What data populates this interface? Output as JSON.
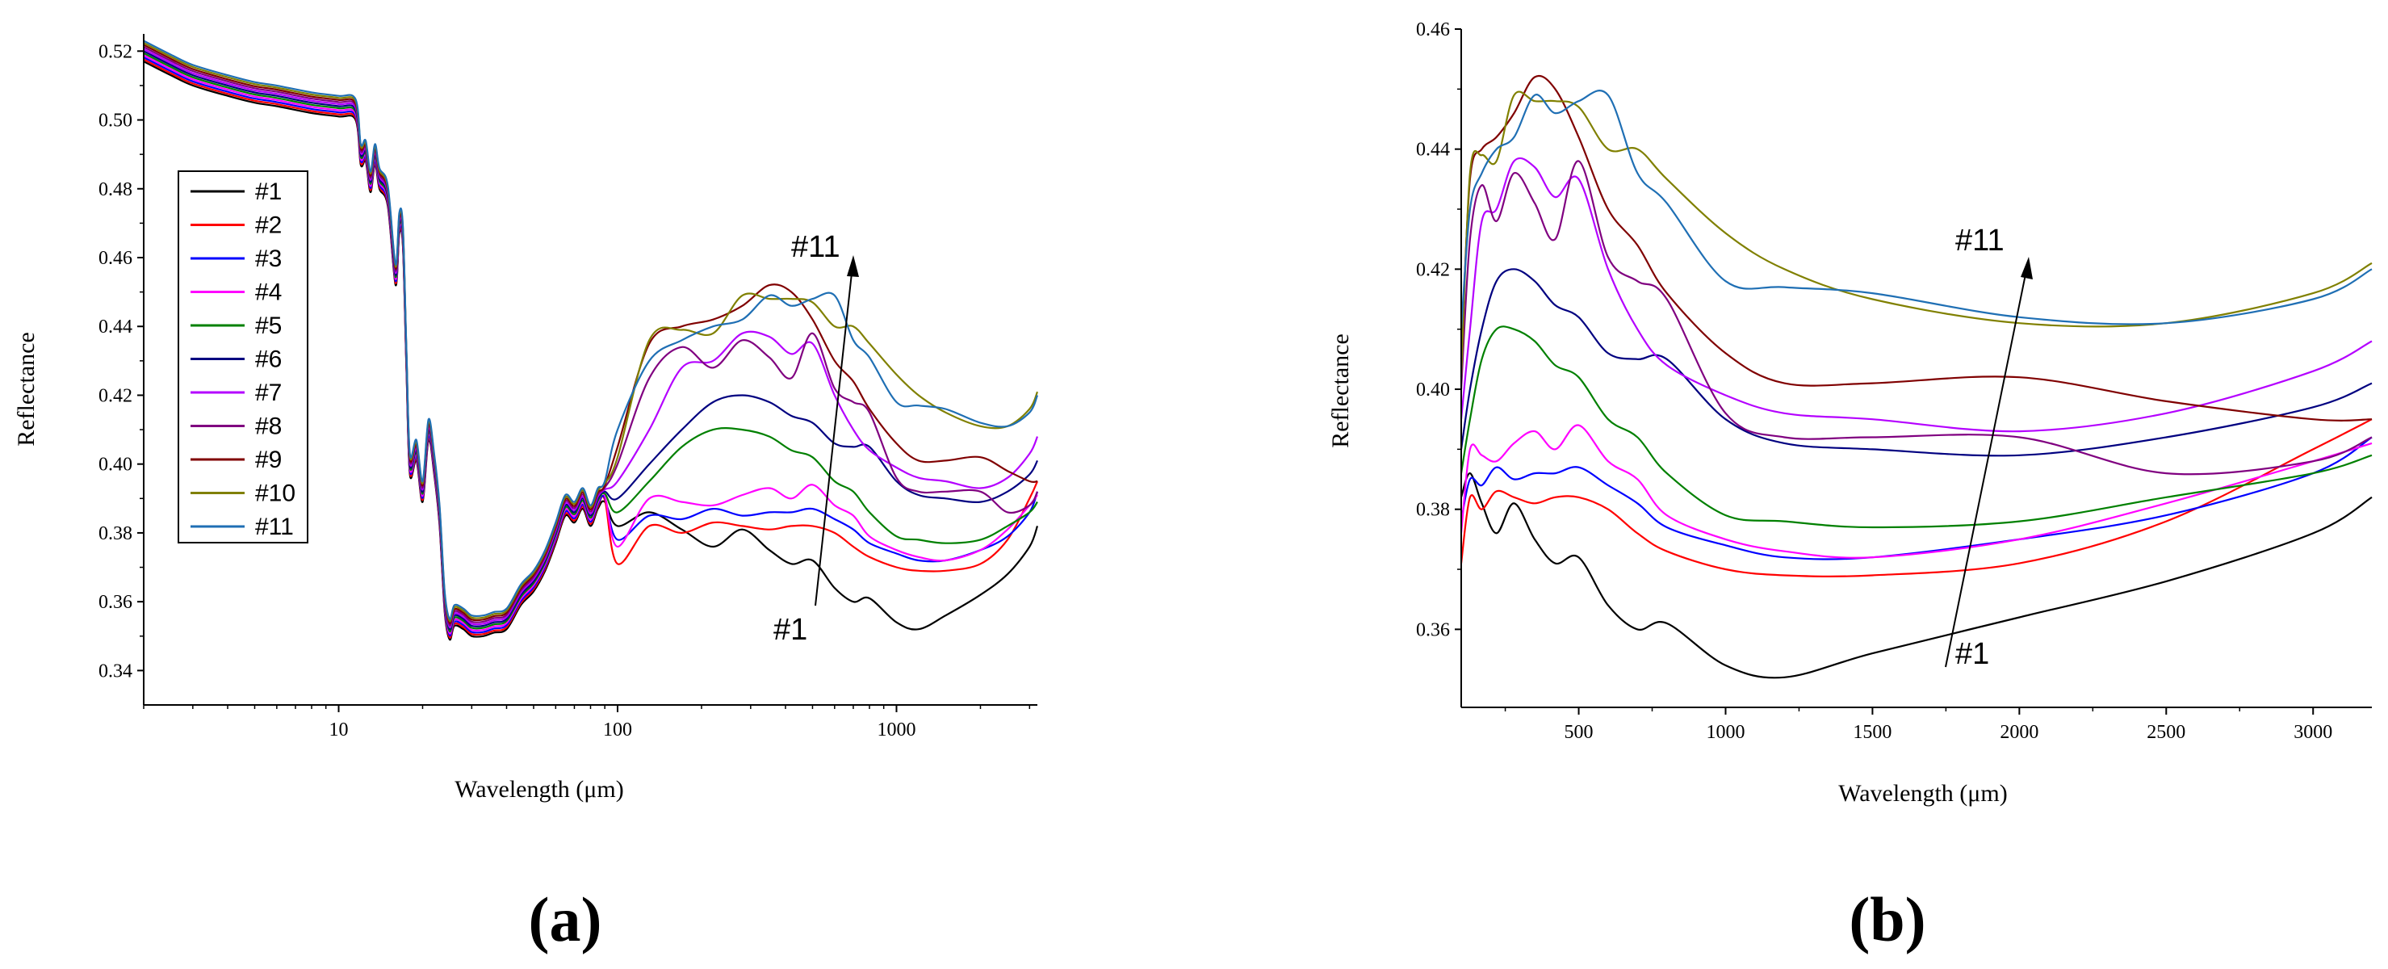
{
  "colors": {
    "#1": "#000000",
    "#2": "#ff0000",
    "#3": "#0000ff",
    "#4": "#ff00ff",
    "#5": "#008000",
    "#6": "#000080",
    "#7": "#b400ff",
    "#8": "#800080",
    "#9": "#800000",
    "#10": "#808000",
    "#11": "#1f6fb4"
  },
  "chart_data": [
    {
      "type": "line",
      "panel_label": "(a)",
      "xlabel": "Wavelength (μm)",
      "ylabel": "Reflectance",
      "xscale": "log",
      "xlim": [
        2,
        3200
      ],
      "ylim": [
        0.33,
        0.525
      ],
      "xticks": [
        10,
        100,
        1000
      ],
      "xtick_labels": [
        "10",
        "100",
        "1000"
      ],
      "yticks": [
        0.34,
        0.36,
        0.38,
        0.4,
        0.42,
        0.44,
        0.46,
        0.48,
        0.5,
        0.52
      ],
      "ytick_labels": [
        "0.34",
        "0.36",
        "0.38",
        "0.40",
        "0.42",
        "0.44",
        "0.46",
        "0.48",
        "0.50",
        "0.52"
      ],
      "legend": [
        "#1",
        "#2",
        "#3",
        "#4",
        "#5",
        "#6",
        "#7",
        "#8",
        "#9",
        "#10",
        "#11"
      ],
      "legend_position": "left",
      "annotations": [
        {
          "text": "#11",
          "x": 420,
          "y": 0.447
        },
        {
          "text": "#1",
          "x": 430,
          "y": 0.347
        }
      ],
      "common_segment": {
        "x": [
          2,
          2.5,
          3,
          4,
          5,
          6,
          8,
          10,
          11.5,
          12,
          12.5,
          13,
          13.5,
          14,
          15,
          16,
          16.5,
          17,
          17.5,
          18,
          19,
          20,
          21,
          22,
          23,
          24,
          25,
          26,
          28,
          30,
          33,
          36,
          40,
          45,
          50,
          55,
          60,
          65,
          70,
          75,
          80,
          85,
          90
        ],
        "y": [
          0.52,
          0.516,
          0.513,
          0.51,
          0.508,
          0.507,
          0.505,
          0.504,
          0.503,
          0.49,
          0.491,
          0.482,
          0.49,
          0.483,
          0.478,
          0.455,
          0.47,
          0.466,
          0.43,
          0.4,
          0.404,
          0.392,
          0.41,
          0.4,
          0.385,
          0.36,
          0.352,
          0.356,
          0.355,
          0.353,
          0.353,
          0.354,
          0.355,
          0.362,
          0.366,
          0.372,
          0.38,
          0.388,
          0.386,
          0.39,
          0.385,
          0.39,
          0.392
        ]
      },
      "series_x": [
        100,
        130,
        170,
        220,
        280,
        350,
        420,
        500,
        600,
        700,
        800,
        1000,
        1200,
        1500,
        2000,
        2500,
        3000,
        3200
      ],
      "series": [
        {
          "name": "#1",
          "values": [
            0.382,
            0.386,
            0.381,
            0.376,
            0.381,
            0.375,
            0.371,
            0.372,
            0.364,
            0.36,
            0.361,
            0.354,
            0.352,
            0.356,
            0.362,
            0.368,
            0.376,
            0.382
          ]
        },
        {
          "name": "#2",
          "values": [
            0.371,
            0.382,
            0.38,
            0.383,
            0.382,
            0.381,
            0.382,
            0.382,
            0.38,
            0.376,
            0.373,
            0.37,
            0.369,
            0.369,
            0.371,
            0.378,
            0.39,
            0.395
          ]
        },
        {
          "name": "#3",
          "values": [
            0.378,
            0.385,
            0.384,
            0.387,
            0.385,
            0.386,
            0.386,
            0.387,
            0.384,
            0.381,
            0.377,
            0.374,
            0.372,
            0.372,
            0.375,
            0.379,
            0.386,
            0.392
          ]
        },
        {
          "name": "#4",
          "values": [
            0.376,
            0.39,
            0.389,
            0.388,
            0.391,
            0.393,
            0.39,
            0.394,
            0.388,
            0.385,
            0.379,
            0.375,
            0.373,
            0.372,
            0.375,
            0.381,
            0.388,
            0.391
          ]
        },
        {
          "name": "#5",
          "values": [
            0.386,
            0.395,
            0.405,
            0.41,
            0.41,
            0.408,
            0.404,
            0.402,
            0.395,
            0.392,
            0.386,
            0.379,
            0.378,
            0.377,
            0.378,
            0.382,
            0.386,
            0.389
          ]
        },
        {
          "name": "#6",
          "values": [
            0.39,
            0.4,
            0.41,
            0.418,
            0.42,
            0.418,
            0.414,
            0.412,
            0.406,
            0.405,
            0.405,
            0.395,
            0.391,
            0.39,
            0.389,
            0.392,
            0.397,
            0.401
          ]
        },
        {
          "name": "#7",
          "values": [
            0.395,
            0.41,
            0.428,
            0.43,
            0.438,
            0.437,
            0.432,
            0.435,
            0.42,
            0.41,
            0.404,
            0.399,
            0.396,
            0.395,
            0.393,
            0.396,
            0.403,
            0.408
          ]
        },
        {
          "name": "#8",
          "values": [
            0.4,
            0.425,
            0.434,
            0.428,
            0.436,
            0.431,
            0.425,
            0.438,
            0.422,
            0.418,
            0.415,
            0.396,
            0.392,
            0.392,
            0.392,
            0.386,
            0.388,
            0.392
          ]
        },
        {
          "name": "#9",
          "values": [
            0.405,
            0.435,
            0.44,
            0.442,
            0.446,
            0.452,
            0.45,
            0.442,
            0.43,
            0.424,
            0.416,
            0.406,
            0.401,
            0.401,
            0.402,
            0.398,
            0.395,
            0.395
          ]
        },
        {
          "name": "#10",
          "values": [
            0.402,
            0.436,
            0.439,
            0.438,
            0.449,
            0.448,
            0.448,
            0.447,
            0.44,
            0.44,
            0.435,
            0.426,
            0.42,
            0.415,
            0.411,
            0.411,
            0.416,
            0.421
          ]
        },
        {
          "name": "#11",
          "values": [
            0.41,
            0.43,
            0.436,
            0.44,
            0.442,
            0.449,
            0.446,
            0.448,
            0.449,
            0.436,
            0.431,
            0.418,
            0.417,
            0.416,
            0.412,
            0.411,
            0.415,
            0.42
          ]
        }
      ]
    },
    {
      "type": "line",
      "panel_label": "(b)",
      "xlabel": "Wavelength (μm)",
      "ylabel": "Reflectance",
      "xscale": "linear",
      "xlim": [
        100,
        3200
      ],
      "ylim": [
        0.347,
        0.46
      ],
      "xticks": [
        500,
        1000,
        1500,
        2000,
        2500,
        3000
      ],
      "xtick_labels": [
        "500",
        "1000",
        "1500",
        "2000",
        "2500",
        "3000"
      ],
      "yticks": [
        0.36,
        0.38,
        0.4,
        0.42,
        0.44,
        0.46
      ],
      "ytick_labels": [
        "0.36",
        "0.38",
        "0.40",
        "0.42",
        "0.44",
        "0.46"
      ],
      "annotations": [
        {
          "text": "#11",
          "x": 1920,
          "y": 0.428
        },
        {
          "text": "#1",
          "x": 1870,
          "y": 0.354
        }
      ],
      "series_x": [
        100,
        130,
        170,
        220,
        280,
        350,
        420,
        500,
        600,
        700,
        800,
        1000,
        1200,
        1500,
        2000,
        2500,
        3000,
        3200
      ],
      "series": [
        {
          "name": "#1",
          "values": [
            0.382,
            0.386,
            0.381,
            0.376,
            0.381,
            0.375,
            0.371,
            0.372,
            0.364,
            0.36,
            0.361,
            0.354,
            0.352,
            0.356,
            0.362,
            0.368,
            0.376,
            0.382
          ]
        },
        {
          "name": "#2",
          "values": [
            0.371,
            0.382,
            0.38,
            0.383,
            0.382,
            0.381,
            0.382,
            0.382,
            0.38,
            0.376,
            0.373,
            0.37,
            0.369,
            0.369,
            0.371,
            0.378,
            0.39,
            0.395
          ]
        },
        {
          "name": "#3",
          "values": [
            0.378,
            0.385,
            0.384,
            0.387,
            0.385,
            0.386,
            0.386,
            0.387,
            0.384,
            0.381,
            0.377,
            0.374,
            0.372,
            0.372,
            0.375,
            0.379,
            0.386,
            0.392
          ]
        },
        {
          "name": "#4",
          "values": [
            0.376,
            0.39,
            0.389,
            0.388,
            0.391,
            0.393,
            0.39,
            0.394,
            0.388,
            0.385,
            0.379,
            0.375,
            0.373,
            0.372,
            0.375,
            0.381,
            0.388,
            0.391
          ]
        },
        {
          "name": "#5",
          "values": [
            0.386,
            0.395,
            0.405,
            0.41,
            0.41,
            0.408,
            0.404,
            0.402,
            0.395,
            0.392,
            0.386,
            0.379,
            0.378,
            0.377,
            0.378,
            0.382,
            0.386,
            0.389
          ]
        },
        {
          "name": "#6",
          "values": [
            0.39,
            0.4,
            0.41,
            0.418,
            0.42,
            0.418,
            0.414,
            0.412,
            0.406,
            0.405,
            0.405,
            0.395,
            0.391,
            0.39,
            0.389,
            0.392,
            0.397,
            0.401
          ]
        },
        {
          "name": "#7",
          "values": [
            0.395,
            0.41,
            0.428,
            0.43,
            0.438,
            0.437,
            0.432,
            0.435,
            0.42,
            0.41,
            0.404,
            0.399,
            0.396,
            0.395,
            0.393,
            0.396,
            0.403,
            0.408
          ]
        },
        {
          "name": "#8",
          "values": [
            0.4,
            0.425,
            0.434,
            0.428,
            0.436,
            0.431,
            0.425,
            0.438,
            0.422,
            0.418,
            0.415,
            0.396,
            0.392,
            0.392,
            0.392,
            0.386,
            0.388,
            0.392
          ]
        },
        {
          "name": "#9",
          "values": [
            0.405,
            0.435,
            0.44,
            0.442,
            0.446,
            0.452,
            0.45,
            0.442,
            0.43,
            0.424,
            0.416,
            0.406,
            0.401,
            0.401,
            0.402,
            0.398,
            0.395,
            0.395
          ]
        },
        {
          "name": "#10",
          "values": [
            0.402,
            0.436,
            0.439,
            0.438,
            0.449,
            0.448,
            0.448,
            0.447,
            0.44,
            0.44,
            0.435,
            0.426,
            0.42,
            0.415,
            0.411,
            0.411,
            0.416,
            0.421
          ]
        },
        {
          "name": "#11",
          "values": [
            0.41,
            0.43,
            0.436,
            0.44,
            0.442,
            0.449,
            0.446,
            0.448,
            0.449,
            0.436,
            0.431,
            0.418,
            0.417,
            0.416,
            0.412,
            0.411,
            0.415,
            0.42
          ]
        }
      ]
    }
  ]
}
